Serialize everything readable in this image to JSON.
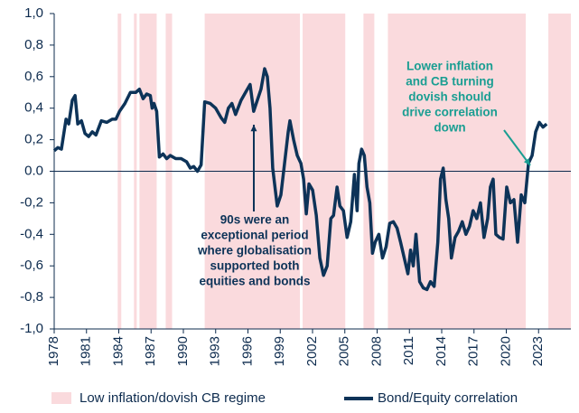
{
  "chart_data": {
    "type": "line",
    "xlim": [
      1978,
      2026
    ],
    "xticks": [
      1978,
      1981,
      1984,
      1987,
      1990,
      1993,
      1996,
      1999,
      2002,
      2005,
      2008,
      2011,
      2014,
      2017,
      2020,
      2023
    ],
    "ylim": [
      -1,
      1
    ],
    "yticks": [
      {
        "value": -1,
        "label": "-1,0"
      },
      {
        "value": -0.8,
        "label": "-0,8"
      },
      {
        "value": -0.6,
        "label": "-0,6"
      },
      {
        "value": -0.4,
        "label": "-0,4"
      },
      {
        "value": -0.2,
        "label": "-0,2"
      },
      {
        "value": 0,
        "label": "0.0"
      },
      {
        "value": 0.2,
        "label": "0,2"
      },
      {
        "value": 0.4,
        "label": "0,4"
      },
      {
        "value": 0.6,
        "label": "0,6"
      },
      {
        "value": 0.8,
        "label": "0,8"
      },
      {
        "value": 1,
        "label": "1,0"
      }
    ],
    "shaded_regions": {
      "name": "Low inflation/dovish CB regime",
      "color": "#fadadd",
      "ranges": [
        [
          1983.9,
          1984.23
        ],
        [
          1985.41,
          1985.67
        ],
        [
          1985.92,
          1987.52
        ],
        [
          1988.36,
          1988.95
        ],
        [
          1991.98,
          2000.83
        ],
        [
          2001.08,
          2005.04
        ],
        [
          2006.73,
          2007.74
        ],
        [
          2009.0,
          2021.81
        ],
        [
          2023.91,
          2026
        ]
      ]
    },
    "series": [
      {
        "name": "Bond/Equity correlation",
        "color": "#0d3358",
        "x": [
          1978.0,
          1978.34,
          1978.67,
          1979.1,
          1979.35,
          1979.68,
          1979.94,
          1980.19,
          1980.53,
          1980.86,
          1981.2,
          1981.54,
          1981.88,
          1982.38,
          1982.89,
          1983.39,
          1983.73,
          1984.07,
          1984.57,
          1985.08,
          1985.58,
          1985.92,
          1986.26,
          1986.59,
          1986.93,
          1987.1,
          1987.27,
          1987.52,
          1987.77,
          1988.11,
          1988.45,
          1988.78,
          1989.29,
          1989.79,
          1990.3,
          1990.64,
          1990.97,
          1991.31,
          1991.65,
          1991.98,
          1992.49,
          1993.0,
          1993.5,
          1993.84,
          1994.18,
          1994.51,
          1994.85,
          1995.36,
          1995.86,
          1996.2,
          1996.53,
          1996.87,
          1997.21,
          1997.55,
          1997.8,
          1998.05,
          1998.3,
          1998.72,
          1999.06,
          1999.4,
          1999.74,
          1999.9,
          2000.24,
          2000.58,
          2000.92,
          2001.17,
          2001.42,
          2001.67,
          2002.01,
          2002.35,
          2002.68,
          2003.02,
          2003.36,
          2003.7,
          2003.95,
          2004.28,
          2004.54,
          2004.87,
          2005.21,
          2005.55,
          2005.89,
          2006.14,
          2006.31,
          2006.56,
          2006.81,
          2007.06,
          2007.32,
          2007.57,
          2007.82,
          2008.16,
          2008.5,
          2008.83,
          2009.17,
          2009.51,
          2009.85,
          2010.18,
          2010.52,
          2010.86,
          2011.11,
          2011.36,
          2011.61,
          2011.95,
          2012.29,
          2012.63,
          2012.96,
          2013.3,
          2013.64,
          2013.89,
          2014.14,
          2014.39,
          2014.65,
          2014.9,
          2015.24,
          2015.57,
          2015.91,
          2016.25,
          2016.58,
          2016.92,
          2017.26,
          2017.6,
          2017.93,
          2018.27,
          2018.52,
          2018.78,
          2019.03,
          2019.37,
          2019.7,
          2020.04,
          2020.38,
          2020.71,
          2021.05,
          2021.39,
          2021.72,
          2022.06,
          2022.4,
          2022.73,
          2023.07,
          2023.41,
          2023.75
        ],
        "values": [
          0.13,
          0.15,
          0.14,
          0.33,
          0.3,
          0.45,
          0.48,
          0.3,
          0.32,
          0.24,
          0.22,
          0.25,
          0.23,
          0.32,
          0.31,
          0.33,
          0.33,
          0.38,
          0.43,
          0.5,
          0.5,
          0.52,
          0.46,
          0.49,
          0.48,
          0.4,
          0.43,
          0.38,
          0.09,
          0.11,
          0.08,
          0.1,
          0.08,
          0.08,
          0.06,
          0.02,
          0.03,
          0.0,
          0.04,
          0.44,
          0.43,
          0.4,
          0.34,
          0.31,
          0.4,
          0.43,
          0.36,
          0.45,
          0.51,
          0.55,
          0.38,
          0.45,
          0.52,
          0.65,
          0.6,
          0.4,
          0.02,
          -0.22,
          -0.15,
          0.05,
          0.25,
          0.32,
          0.2,
          0.1,
          0.05,
          -0.05,
          -0.27,
          -0.08,
          -0.12,
          -0.28,
          -0.55,
          -0.66,
          -0.6,
          -0.3,
          -0.28,
          -0.1,
          -0.22,
          -0.25,
          -0.42,
          -0.32,
          -0.02,
          -0.25,
          0.05,
          0.14,
          0.1,
          -0.1,
          -0.2,
          -0.52,
          -0.45,
          -0.4,
          -0.55,
          -0.48,
          -0.33,
          -0.32,
          -0.36,
          -0.45,
          -0.55,
          -0.65,
          -0.5,
          -0.6,
          -0.4,
          -0.7,
          -0.74,
          -0.75,
          -0.7,
          -0.73,
          -0.45,
          -0.05,
          0.02,
          -0.18,
          -0.3,
          -0.55,
          -0.42,
          -0.38,
          -0.32,
          -0.4,
          -0.35,
          -0.25,
          -0.3,
          -0.2,
          -0.42,
          -0.3,
          -0.1,
          -0.05,
          -0.4,
          -0.42,
          -0.43,
          -0.1,
          -0.2,
          -0.18,
          -0.45,
          -0.15,
          -0.2,
          0.05,
          0.1,
          0.25,
          0.31,
          0.28,
          0.3
        ]
      }
    ],
    "annotations": [
      {
        "lines": [
          "90s were an",
          "exceptional period",
          "where globalisation",
          "supported both",
          "equities and bonds"
        ],
        "color": "#0d3358"
      },
      {
        "lines": [
          "Lower inflation",
          "and CB turning",
          "dovish should",
          "drive correlation",
          "down"
        ],
        "color": "#1a9e92"
      }
    ]
  }
}
